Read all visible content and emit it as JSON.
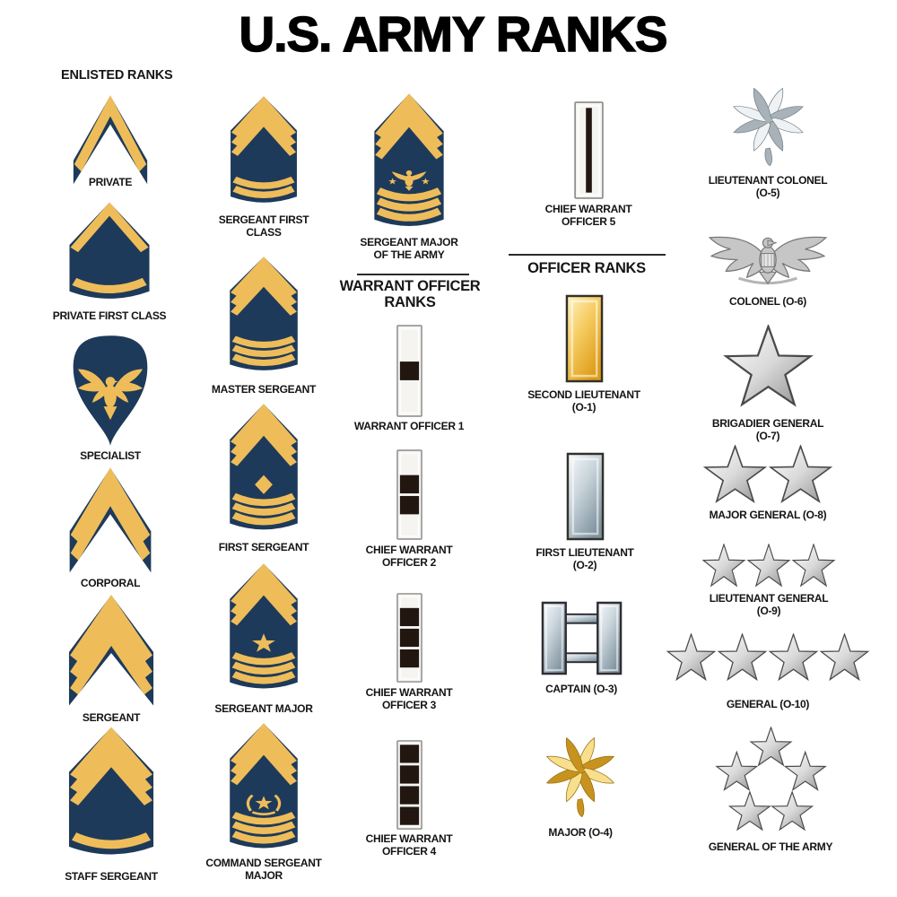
{
  "title": "U.S. ARMY RANKS",
  "sections": {
    "enlisted": {
      "heading": "ENLISTED RANKS"
    },
    "warrant": {
      "heading": "WARRANT OFFICER RANKS"
    },
    "officer": {
      "heading": "OFFICER RANKS"
    }
  },
  "colors": {
    "background": "#ffffff",
    "text": "#141414",
    "gold": "#eebd5a",
    "navy": "#1e3a5a",
    "bar_bg": "#f5f4f1",
    "bar_border": "#8a8a8a",
    "square_black": "#221710",
    "gold_bar_light": "#fff3c4",
    "gold_bar_mid": "#f6cd63",
    "gold_bar_deep": "#dd9a14",
    "silver_bar_light": "#f8fbfd",
    "silver_bar_mid": "#c9d4db",
    "silver_bar_deep": "#7e929e",
    "leaf_gold_light": "#f7df8d",
    "leaf_gold_dark": "#c8921f",
    "leaf_gold_outline": "#96700f",
    "leaf_silver_light": "#eff2f4",
    "leaf_silver_dark": "#a8b2b8",
    "leaf_silver_outline": "#77838b",
    "star_light": "#ffffff",
    "star_mid": "#d9d9d9",
    "star_deep": "#8c8c8c",
    "star_outline": "#4a4a4a",
    "eagle_gray": "#c6c6c6",
    "eagle_outline": "#787878"
  },
  "ranks": [
    {
      "id": "private",
      "column": 1,
      "label_lines": [
        "PRIVATE"
      ],
      "insignia": {
        "kind": "chevron",
        "chevrons": 1,
        "rockers": 0,
        "device": "none"
      }
    },
    {
      "id": "private-first-class",
      "column": 1,
      "label_lines": [
        "PRIVATE FIRST CLASS"
      ],
      "insignia": {
        "kind": "chevron",
        "chevrons": 1,
        "rockers": 1,
        "device": "field"
      }
    },
    {
      "id": "specialist",
      "column": 1,
      "label_lines": [
        "SPECIALIST"
      ],
      "insignia": {
        "kind": "specialist-eagle"
      }
    },
    {
      "id": "corporal",
      "column": 1,
      "label_lines": [
        "CORPORAL"
      ],
      "insignia": {
        "kind": "chevron",
        "chevrons": 2,
        "rockers": 0,
        "device": "none"
      }
    },
    {
      "id": "sergeant",
      "column": 1,
      "label_lines": [
        "SERGEANT"
      ],
      "insignia": {
        "kind": "chevron",
        "chevrons": 3,
        "rockers": 0,
        "device": "none"
      }
    },
    {
      "id": "staff-sergeant",
      "column": 1,
      "label_lines": [
        "STAFF SERGEANT"
      ],
      "insignia": {
        "kind": "chevron",
        "chevrons": 3,
        "rockers": 1,
        "device": "field"
      }
    },
    {
      "id": "sergeant-first-class",
      "column": 2,
      "label_lines": [
        "SERGEANT FIRST",
        "CLASS"
      ],
      "insignia": {
        "kind": "chevron",
        "chevrons": 3,
        "rockers": 2,
        "device": "field"
      }
    },
    {
      "id": "master-sergeant",
      "column": 2,
      "label_lines": [
        "MASTER SERGEANT"
      ],
      "insignia": {
        "kind": "chevron",
        "chevrons": 3,
        "rockers": 3,
        "device": "field"
      }
    },
    {
      "id": "first-sergeant",
      "column": 2,
      "label_lines": [
        "FIRST SERGEANT"
      ],
      "insignia": {
        "kind": "chevron",
        "chevrons": 3,
        "rockers": 3,
        "device": "diamond"
      }
    },
    {
      "id": "sergeant-major",
      "column": 2,
      "label_lines": [
        "SERGEANT MAJOR"
      ],
      "insignia": {
        "kind": "chevron",
        "chevrons": 3,
        "rockers": 3,
        "device": "star"
      }
    },
    {
      "id": "command-sergeant-major",
      "column": 2,
      "label_lines": [
        "COMMAND SERGEANT",
        "MAJOR"
      ],
      "insignia": {
        "kind": "chevron",
        "chevrons": 3,
        "rockers": 3,
        "device": "wreath-star"
      }
    },
    {
      "id": "sergeant-major-of-the-army",
      "column": 3,
      "label_lines": [
        "SERGEANT MAJOR",
        "OF THE ARMY"
      ],
      "insignia": {
        "kind": "chevron",
        "chevrons": 3,
        "rockers": 3,
        "device": "eagle-stars"
      }
    },
    {
      "id": "warrant-officer-1",
      "column": 3,
      "label_lines": [
        "WARRANT OFFICER 1"
      ],
      "insignia": {
        "kind": "wo-bar",
        "squares": 1
      }
    },
    {
      "id": "chief-warrant-officer-2",
      "column": 3,
      "label_lines": [
        "CHIEF WARRANT",
        "OFFICER 2"
      ],
      "insignia": {
        "kind": "wo-bar",
        "squares": 2
      }
    },
    {
      "id": "chief-warrant-officer-3",
      "column": 3,
      "label_lines": [
        "CHIEF WARRANT",
        "OFFICER 3"
      ],
      "insignia": {
        "kind": "wo-bar",
        "squares": 3
      }
    },
    {
      "id": "chief-warrant-officer-4",
      "column": 3,
      "label_lines": [
        "CHIEF WARRANT",
        "OFFICER 4"
      ],
      "insignia": {
        "kind": "wo-bar",
        "squares": 4
      }
    },
    {
      "id": "chief-warrant-officer-5",
      "column": 4,
      "label_lines": [
        "CHIEF WARRANT",
        "OFFICER 5"
      ],
      "insignia": {
        "kind": "wo-bar",
        "stripe": true
      }
    },
    {
      "id": "second-lieutenant",
      "column": 4,
      "label_lines": [
        "SECOND LIEUTENANT",
        "(O-1)"
      ],
      "insignia": {
        "kind": "bar",
        "metal": "gold"
      }
    },
    {
      "id": "first-lieutenant",
      "column": 4,
      "label_lines": [
        "FIRST LIEUTENANT",
        "(O-2)"
      ],
      "insignia": {
        "kind": "bar",
        "metal": "silver"
      }
    },
    {
      "id": "captain",
      "column": 4,
      "label_lines": [
        "CAPTAIN (O-3)"
      ],
      "insignia": {
        "kind": "double-bar",
        "metal": "silver"
      }
    },
    {
      "id": "major",
      "column": 4,
      "label_lines": [
        "MAJOR (O-4)"
      ],
      "insignia": {
        "kind": "oak-leaf",
        "metal": "gold"
      }
    },
    {
      "id": "lieutenant-colonel",
      "column": 5,
      "label_lines": [
        "LIEUTENANT COLONEL",
        "(O-5)"
      ],
      "insignia": {
        "kind": "oak-leaf",
        "metal": "silver"
      }
    },
    {
      "id": "colonel",
      "column": 5,
      "label_lines": [
        "COLONEL (O-6)"
      ],
      "insignia": {
        "kind": "eagle"
      }
    },
    {
      "id": "brigadier-general",
      "column": 5,
      "label_lines": [
        "BRIGADIER GENERAL",
        "(O-7)"
      ],
      "insignia": {
        "kind": "stars",
        "count": 1
      }
    },
    {
      "id": "major-general",
      "column": 5,
      "label_lines": [
        "MAJOR GENERAL (O-8)"
      ],
      "insignia": {
        "kind": "stars",
        "count": 2
      }
    },
    {
      "id": "lieutenant-general",
      "column": 5,
      "label_lines": [
        "LIEUTENANT GENERAL",
        "(O-9)"
      ],
      "insignia": {
        "kind": "stars",
        "count": 3
      }
    },
    {
      "id": "general",
      "column": 5,
      "label_lines": [
        "GENERAL (O-10)"
      ],
      "insignia": {
        "kind": "stars",
        "count": 4
      }
    },
    {
      "id": "general-of-the-army",
      "column": 5,
      "label_lines": [
        "GENERAL OF THE ARMY"
      ],
      "insignia": {
        "kind": "star-circle",
        "count": 5
      }
    }
  ]
}
